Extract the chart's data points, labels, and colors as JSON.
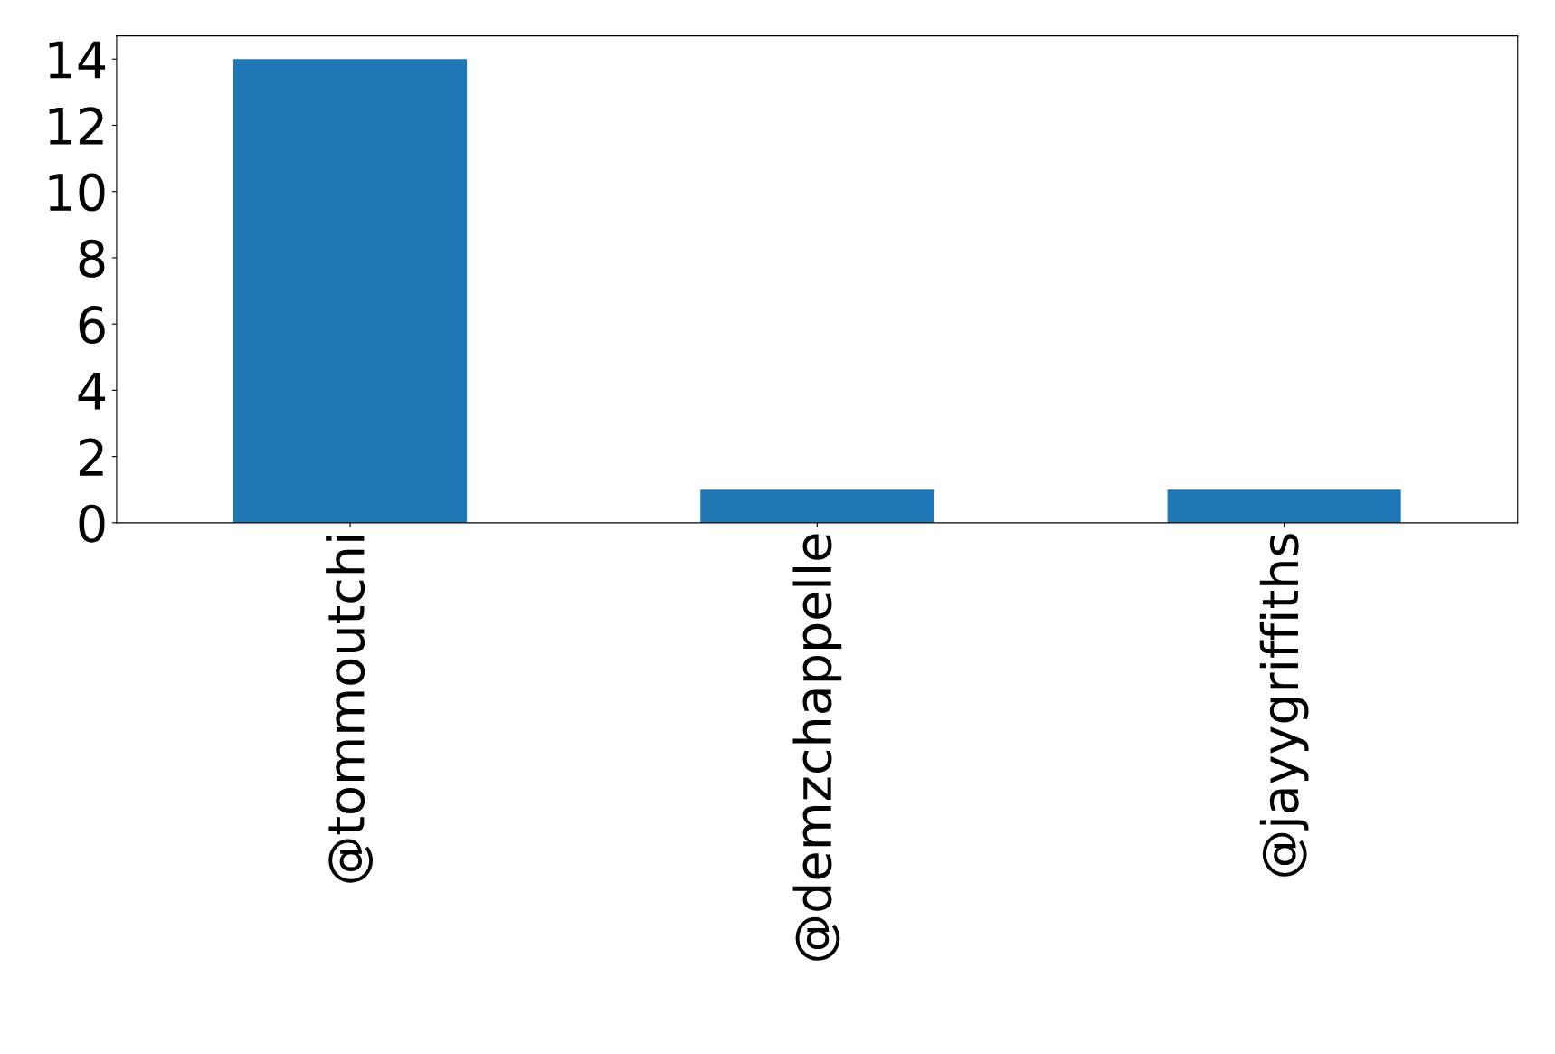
{
  "chart_data": {
    "type": "bar",
    "categories": [
      "@tommoutchi",
      "@demzchappelle",
      "@jayygriffiths"
    ],
    "values": [
      14,
      1,
      1
    ],
    "color": "#1f77b4",
    "ylim": [
      0,
      14.7
    ],
    "yticks": [
      0,
      2,
      4,
      6,
      8,
      10,
      12,
      14
    ],
    "grid": false,
    "legend": false
  }
}
